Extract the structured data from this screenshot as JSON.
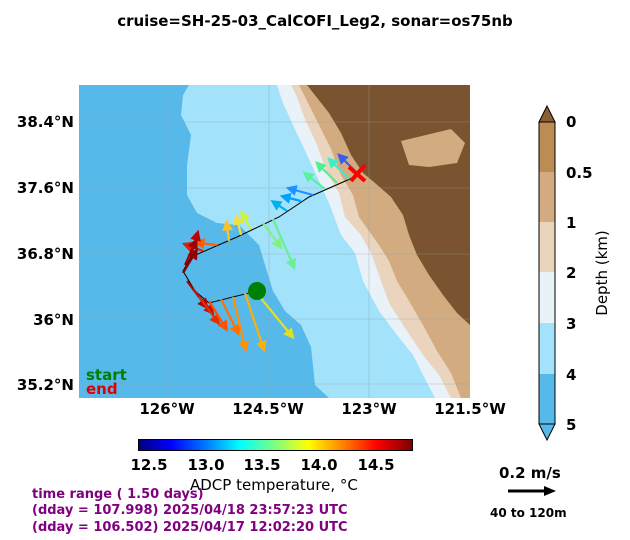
{
  "title": "cruise=SH-25-03_CalCOFI_Leg2,   sonar=os75nb",
  "map": {
    "lat_labels": [
      "38.4°N",
      "37.6°N",
      "36.8°N",
      "36°N",
      "35.2°N"
    ],
    "lon_labels": [
      "126°W",
      "124.5°W",
      "123°W",
      "121.5°W"
    ],
    "start_label": "start",
    "end_label": "end",
    "colors": {
      "ocean_deep": "#56b9ea",
      "ocean_mid": "#a2e2fb",
      "ocean_shallow": "#e8f2f8",
      "shelf": "#ead4bd",
      "slope": "#d3ab80",
      "land": "#7a5430",
      "start_marker": "#008000",
      "end_marker": "#ff0000"
    }
  },
  "temp_colorbar": {
    "label": "ADCP temperature, °C",
    "ticks": [
      "12.5",
      "13.0",
      "13.5",
      "14.0",
      "14.5"
    ]
  },
  "depth_colorbar": {
    "label": "Depth (km)",
    "ticks": [
      "0",
      "0.5",
      "1",
      "2",
      "3",
      "4",
      "5"
    ]
  },
  "scale": {
    "speed_label": "0.2 m/s",
    "depth_range_label": "40 to 120m"
  },
  "time_info": {
    "range": "time range ( 1.50 days)",
    "end": "(dday = 107.998) 2025/04/18 23:57:23 UTC",
    "start": "(dday = 106.502) 2025/04/17 12:02:20 UTC"
  }
}
